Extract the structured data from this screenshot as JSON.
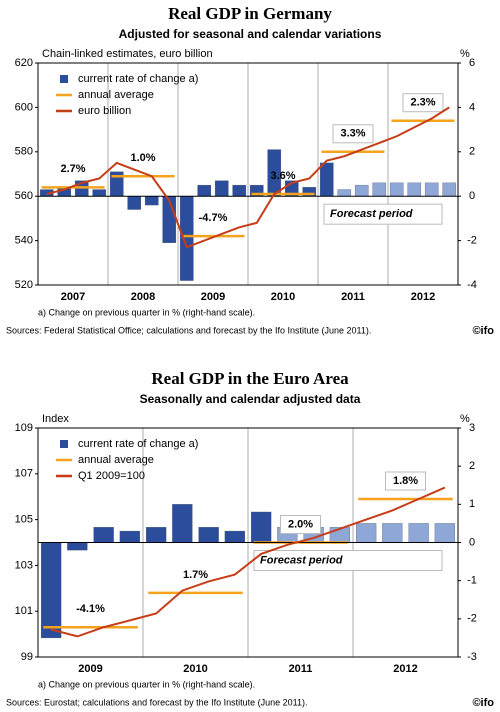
{
  "chart_data": [
    {
      "type": "combo",
      "title": "Real GDP in Germany",
      "subtitle": "Adjusted for seasonal and calendar variations",
      "y_label": "Chain-linked estimates, euro billion",
      "y2_label": "%",
      "ylim": [
        520,
        620
      ],
      "yticks": [
        520,
        540,
        560,
        580,
        600,
        620
      ],
      "y2lim": [
        -4,
        6
      ],
      "y2ticks": [
        -4,
        -2,
        0,
        2,
        4,
        6
      ],
      "year_labels": [
        "2007",
        "2008",
        "2009",
        "2010",
        "2011",
        "2012"
      ],
      "series": [
        {
          "name": "current rate of change a)",
          "type": "bar",
          "axis": "y2",
          "color": "#2b4d9c",
          "colors": [
            "#2b4d9c",
            "#2b4d9c",
            "#2b4d9c",
            "#2b4d9c",
            "#2b4d9c",
            "#2b4d9c",
            "#2b4d9c",
            "#2b4d9c",
            "#2b4d9c",
            "#2b4d9c",
            "#2b4d9c",
            "#2b4d9c",
            "#2b4d9c",
            "#2b4d9c",
            "#2b4d9c",
            "#2b4d9c",
            "#2b4d9c",
            "#8ea7d6",
            "#8ea7d6",
            "#8ea7d6",
            "#8ea7d6",
            "#8ea7d6",
            "#8ea7d6",
            "#8ea7d6"
          ],
          "values": [
            0.3,
            0.4,
            0.7,
            0.3,
            1.1,
            -0.6,
            -0.4,
            -2.1,
            -3.8,
            0.5,
            0.7,
            0.5,
            0.5,
            2.1,
            0.7,
            0.4,
            1.5,
            0.3,
            0.5,
            0.6,
            0.6,
            0.6,
            0.6,
            0.6
          ]
        },
        {
          "name": "annual average",
          "type": "annual",
          "color": "#f5a21c",
          "values": [
            564,
            569,
            542,
            561,
            580,
            594
          ]
        },
        {
          "name": "euro billion",
          "type": "line",
          "color": "#c63d17",
          "values": [
            561,
            563,
            566,
            568,
            575,
            572,
            569,
            558,
            537,
            540,
            543,
            546,
            548,
            561,
            566,
            568,
            576,
            578,
            581,
            584,
            587,
            591,
            595,
            600
          ]
        }
      ],
      "annotations": [
        "2.7%",
        "1.0%",
        "-4.7%",
        "3.6%",
        "3.3%",
        "2.3%"
      ],
      "annotation_boxed": [
        false,
        false,
        false,
        false,
        true,
        true
      ],
      "forecast_label": "Forecast period",
      "note": "a) Change on previous quarter in % (right-hand scale).",
      "source": "Sources: Federal Statistical Office; calculations and forecast by the Ifo Institute (June 2011).",
      "logo": "©ifo"
    },
    {
      "type": "combo",
      "title": "Real GDP in the Euro Area",
      "subtitle": "Seasonally and calendar adjusted data",
      "y_label": "Index",
      "y2_label": "%",
      "ylim": [
        99,
        109
      ],
      "yticks": [
        99,
        101,
        103,
        105,
        107,
        109
      ],
      "y2lim": [
        -3,
        3
      ],
      "y2ticks": [
        -3,
        -2,
        -1,
        0,
        1,
        2,
        3
      ],
      "year_labels": [
        "2009",
        "2010",
        "2011",
        "2012"
      ],
      "series": [
        {
          "name": "current rate of change a)",
          "type": "bar",
          "axis": "y2",
          "color": "#2b4d9c",
          "colors": [
            "#2b4d9c",
            "#2b4d9c",
            "#2b4d9c",
            "#2b4d9c",
            "#2b4d9c",
            "#2b4d9c",
            "#2b4d9c",
            "#2b4d9c",
            "#2b4d9c",
            "#8ea7d6",
            "#8ea7d6",
            "#8ea7d6",
            "#8ea7d6",
            "#8ea7d6",
            "#8ea7d6",
            "#8ea7d6"
          ],
          "values": [
            -2.5,
            -0.2,
            0.4,
            0.3,
            0.4,
            1.0,
            0.4,
            0.3,
            0.8,
            0.4,
            0.4,
            0.4,
            0.5,
            0.5,
            0.5,
            0.5
          ]
        },
        {
          "name": "annual average",
          "type": "annual",
          "color": "#f5a21c",
          "values": [
            100.3,
            101.8,
            104.0,
            105.9
          ]
        },
        {
          "name": "Q1 2009=100",
          "type": "line",
          "color": "#c63d17",
          "values": [
            100.2,
            99.9,
            100.3,
            100.6,
            100.9,
            101.9,
            102.3,
            102.6,
            103.5,
            103.9,
            104.2,
            104.6,
            105.0,
            105.4,
            105.9,
            106.4
          ]
        }
      ],
      "annotations": [
        "-4.1%",
        "1.7%",
        "2.0%",
        "1.8%"
      ],
      "annotation_boxed": [
        false,
        false,
        true,
        true
      ],
      "forecast_label": "Forecast period",
      "note": "a) Change on previous quarter in % (right-hand scale).",
      "source": "Sources: Eurostat; calculations and forecast by the Ifo Institute (June 2011).",
      "logo": "©ifo"
    }
  ]
}
